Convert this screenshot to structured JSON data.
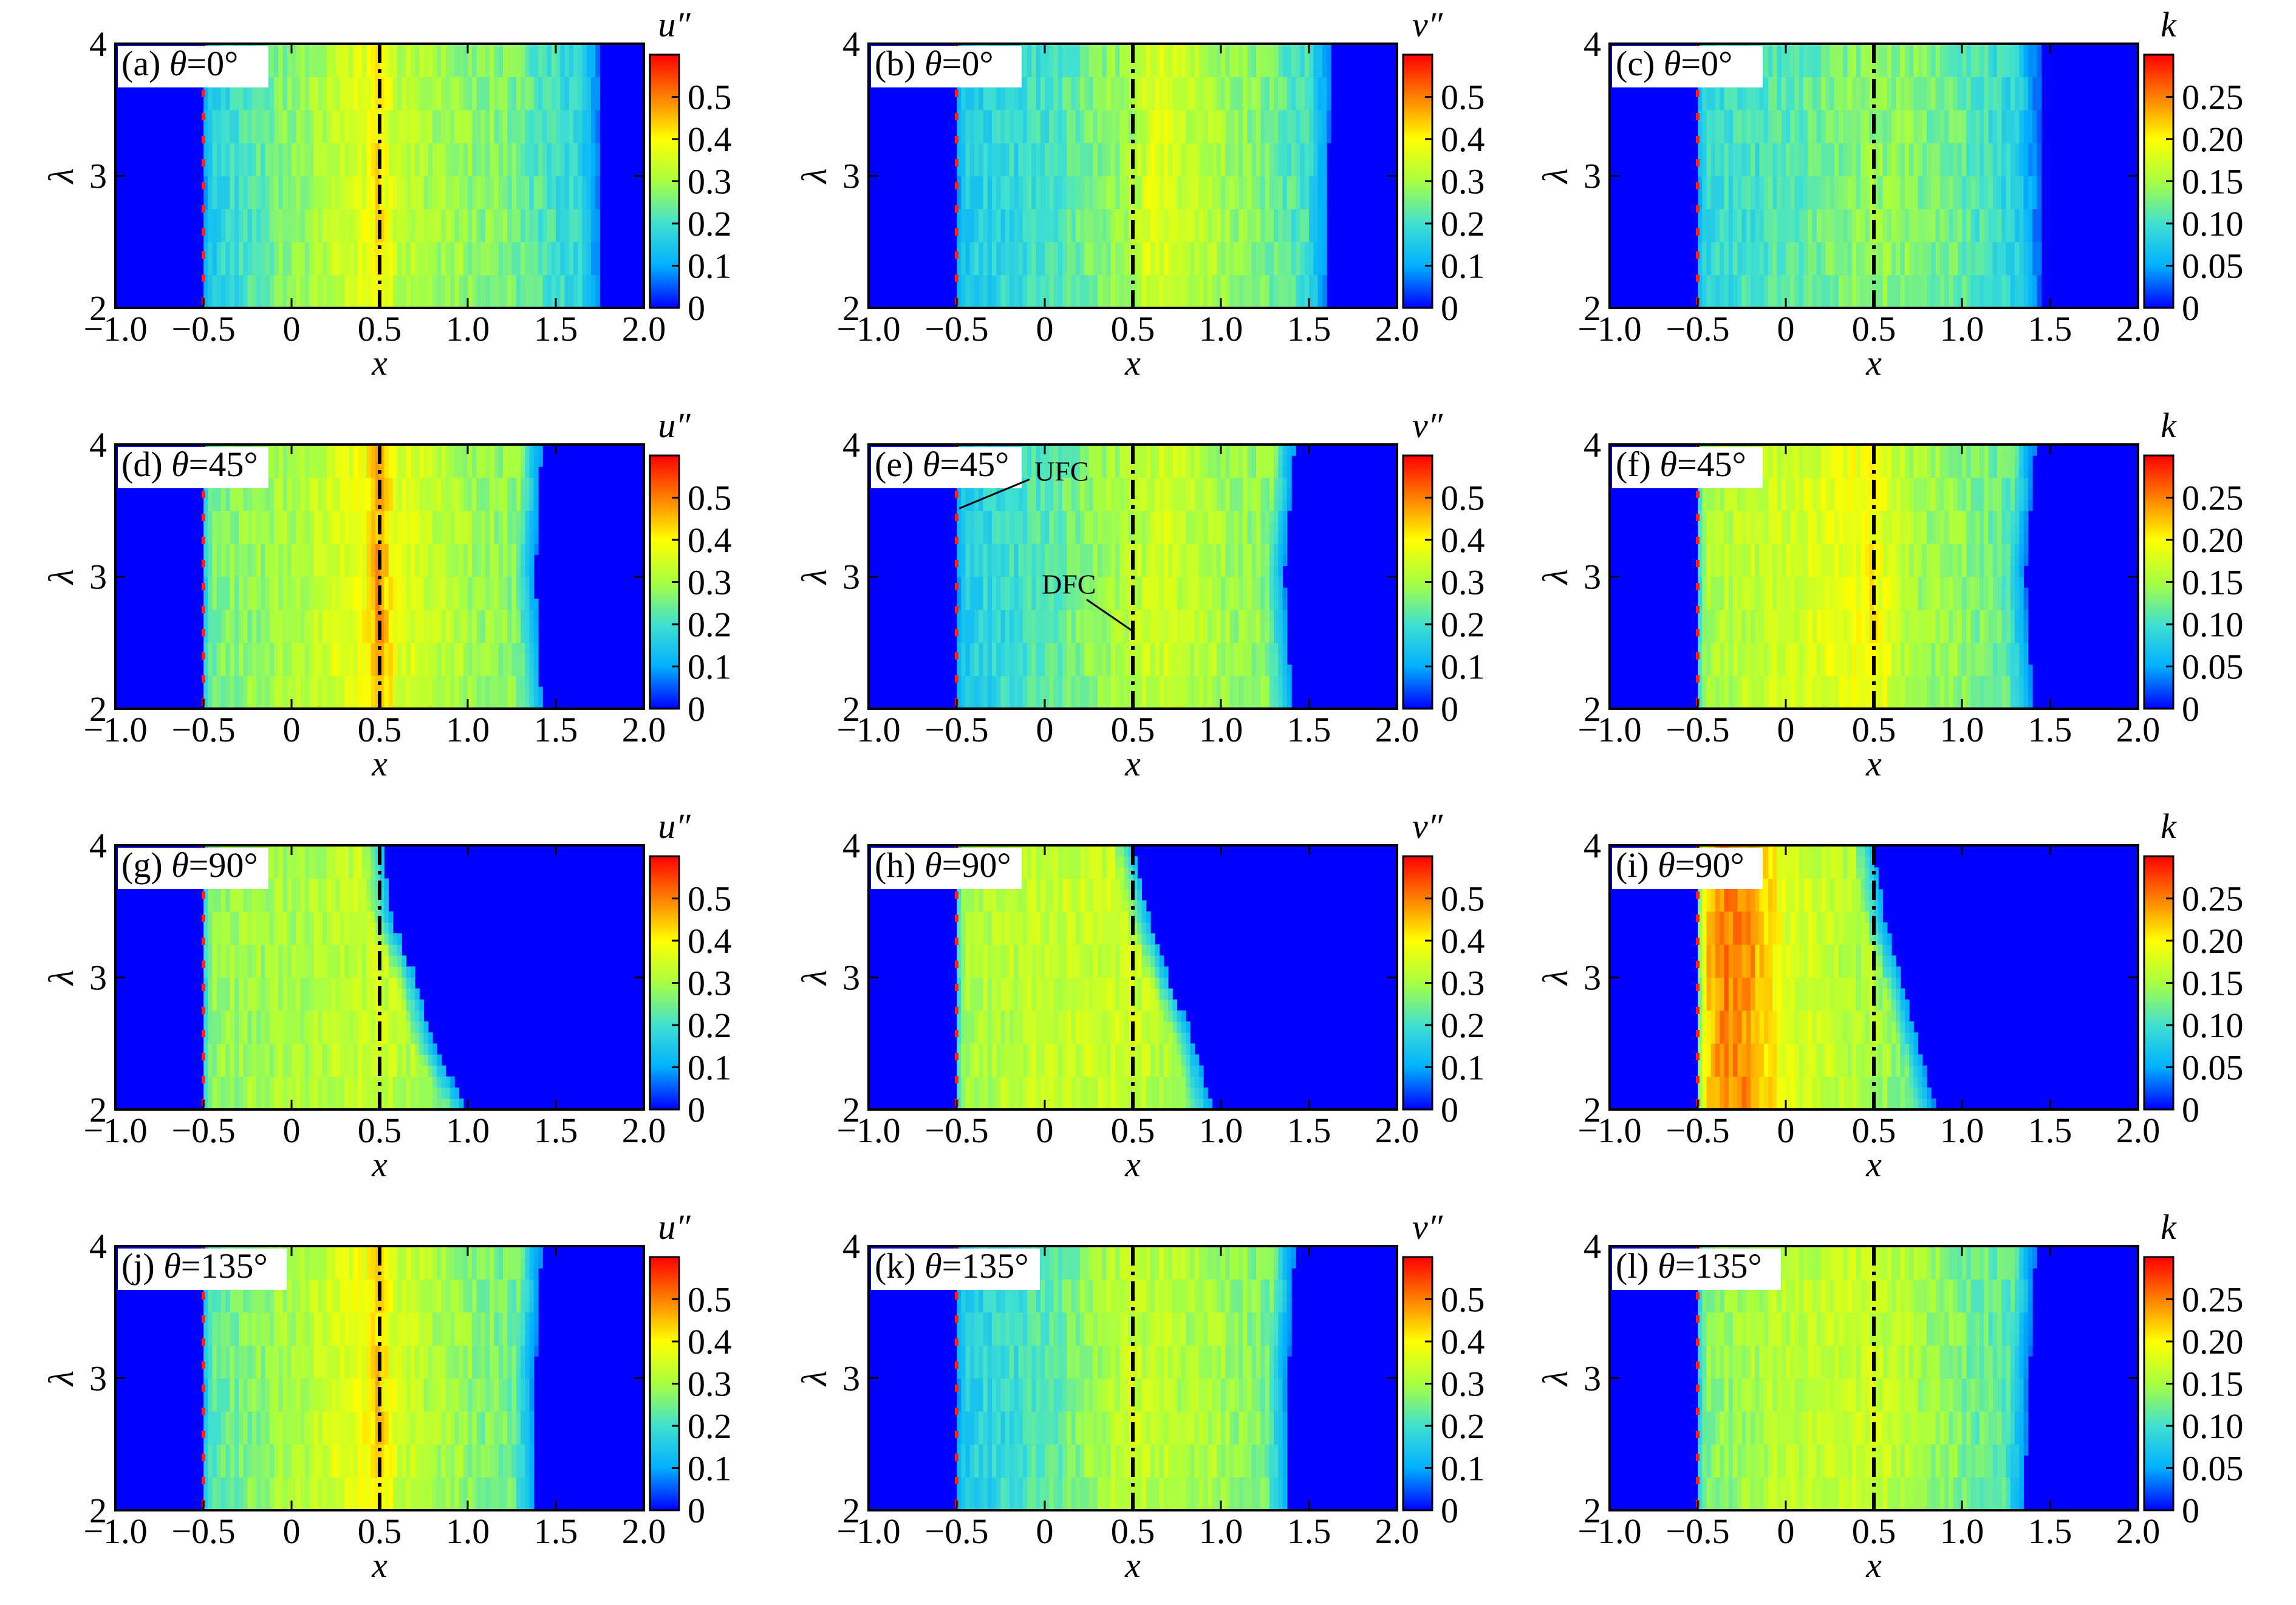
{
  "chart_data": {
    "type": "heatmap",
    "x_axis": {
      "label": "x",
      "range": [
        -1.0,
        2.0
      ],
      "ticks": [
        "−1.0",
        "−0.5",
        "0",
        "0.5",
        "1.0",
        "1.5",
        "2.0"
      ],
      "tick_values": [
        -1.0,
        -0.5,
        0,
        0.5,
        1.0,
        1.5,
        2.0
      ]
    },
    "y_axis": {
      "label": "λ",
      "range": [
        2,
        4
      ],
      "ticks": [
        "2",
        "3",
        "4"
      ],
      "tick_values": [
        2,
        3,
        4
      ]
    },
    "reference_lines": {
      "upstream_x": -0.5,
      "downstream_x": 0.5
    },
    "annotations": [
      {
        "panel": "e",
        "text": "UFC",
        "x": -0.5,
        "y": 3.35
      },
      {
        "panel": "e",
        "text": "DFC",
        "x": 0.5,
        "y": 2.55
      }
    ],
    "colorbars": {
      "u": {
        "label": "u″",
        "range": [
          0,
          0.6
        ],
        "ticks": [
          "0",
          "0.1",
          "0.2",
          "0.3",
          "0.4",
          "0.5"
        ],
        "tick_values": [
          0,
          0.1,
          0.2,
          0.3,
          0.4,
          0.5
        ]
      },
      "v": {
        "label": "v″",
        "range": [
          0,
          0.6
        ],
        "ticks": [
          "0",
          "0.1",
          "0.2",
          "0.3",
          "0.4",
          "0.5"
        ],
        "tick_values": [
          0,
          0.1,
          0.2,
          0.3,
          0.4,
          0.5
        ]
      },
      "k": {
        "label": "k",
        "range": [
          0,
          0.3
        ],
        "ticks": [
          "0",
          "0.05",
          "0.10",
          "0.15",
          "0.20",
          "0.25"
        ],
        "tick_values": [
          0,
          0.05,
          0.1,
          0.15,
          0.2,
          0.25
        ]
      }
    },
    "colormap": [
      "#0000ff",
      "#00b0ff",
      "#40e0d0",
      "#a8ff40",
      "#ffff00",
      "#ff8000",
      "#ff0000"
    ],
    "panels": [
      {
        "id": "a",
        "tag": "(a)",
        "theta": "θ=0°",
        "var": "u",
        "front": [
          [
            2,
            1.75
          ],
          [
            4,
            1.75
          ]
        ],
        "levels": [
          [
            -0.5,
            0.15
          ],
          [
            0.0,
            0.27
          ],
          [
            0.4,
            0.36
          ],
          [
            0.5,
            0.42
          ],
          [
            0.6,
            0.32
          ],
          [
            1.2,
            0.26
          ],
          [
            1.6,
            0.18
          ]
        ]
      },
      {
        "id": "b",
        "tag": "(b)",
        "theta": "θ=0°",
        "var": "v",
        "front": [
          [
            2,
            1.6
          ],
          [
            4,
            1.62
          ]
        ],
        "levels": [
          [
            -0.5,
            0.15
          ],
          [
            0.0,
            0.2
          ],
          [
            0.5,
            0.3
          ],
          [
            0.6,
            0.36
          ],
          [
            1.0,
            0.3
          ],
          [
            1.5,
            0.2
          ]
        ]
      },
      {
        "id": "c",
        "tag": "(c)",
        "theta": "θ=0°",
        "var": "k",
        "front": [
          [
            2,
            1.45
          ],
          [
            4,
            1.45
          ]
        ],
        "levels": [
          [
            -0.5,
            0.09
          ],
          [
            0.0,
            0.11
          ],
          [
            0.5,
            0.14
          ],
          [
            1.0,
            0.12
          ],
          [
            1.4,
            0.07
          ]
        ]
      },
      {
        "id": "d",
        "tag": "(d)",
        "theta": "θ=45°",
        "var": "u",
        "front": [
          [
            2,
            1.42
          ],
          [
            3,
            1.38
          ],
          [
            4,
            1.42
          ]
        ],
        "levels": [
          [
            -0.5,
            0.25
          ],
          [
            0.0,
            0.3
          ],
          [
            0.4,
            0.38
          ],
          [
            0.5,
            0.48
          ],
          [
            0.6,
            0.36
          ],
          [
            1.0,
            0.3
          ],
          [
            1.4,
            0.25
          ]
        ]
      },
      {
        "id": "e",
        "tag": "(e)",
        "theta": "θ=45°",
        "var": "v",
        "front": [
          [
            2,
            1.4
          ],
          [
            3,
            1.36
          ],
          [
            4,
            1.42
          ]
        ],
        "levels": [
          [
            -0.5,
            0.15
          ],
          [
            0.0,
            0.22
          ],
          [
            0.5,
            0.32
          ],
          [
            0.7,
            0.34
          ],
          [
            1.0,
            0.3
          ],
          [
            1.4,
            0.25
          ]
        ]
      },
      {
        "id": "f",
        "tag": "(f)",
        "theta": "θ=45°",
        "var": "k",
        "front": [
          [
            2,
            1.4
          ],
          [
            3,
            1.36
          ],
          [
            4,
            1.42
          ]
        ],
        "levels": [
          [
            -0.5,
            0.15
          ],
          [
            0.0,
            0.17
          ],
          [
            0.4,
            0.19
          ],
          [
            0.5,
            0.2
          ],
          [
            0.7,
            0.15
          ],
          [
            1.0,
            0.14
          ],
          [
            1.4,
            0.1
          ]
        ]
      },
      {
        "id": "g",
        "tag": "(g)",
        "theta": "θ=90°",
        "var": "u",
        "front": [
          [
            2,
            1.0
          ],
          [
            2.5,
            0.8
          ],
          [
            3.0,
            0.7
          ],
          [
            3.5,
            0.55
          ],
          [
            4,
            0.52
          ]
        ],
        "levels": [
          [
            -0.5,
            0.28
          ],
          [
            0.0,
            0.3
          ],
          [
            0.5,
            0.34
          ],
          [
            1.0,
            0.25
          ]
        ]
      },
      {
        "id": "h",
        "tag": "(h)",
        "theta": "θ=90°",
        "var": "v",
        "front": [
          [
            2,
            0.95
          ],
          [
            2.5,
            0.85
          ],
          [
            3.0,
            0.7
          ],
          [
            3.5,
            0.58
          ],
          [
            4,
            0.5
          ]
        ],
        "levels": [
          [
            -0.5,
            0.3
          ],
          [
            0.0,
            0.33
          ],
          [
            0.5,
            0.34
          ],
          [
            1.0,
            0.25
          ]
        ]
      },
      {
        "id": "i",
        "tag": "(i)",
        "theta": "θ=90°",
        "var": "k",
        "front": [
          [
            2,
            0.85
          ],
          [
            2.5,
            0.75
          ],
          [
            3.0,
            0.65
          ],
          [
            3.5,
            0.55
          ],
          [
            4,
            0.5
          ]
        ],
        "levels": [
          [
            -0.5,
            0.2
          ],
          [
            -0.35,
            0.25
          ],
          [
            -0.2,
            0.24
          ],
          [
            0.0,
            0.18
          ],
          [
            0.5,
            0.15
          ],
          [
            0.8,
            0.12
          ]
        ]
      },
      {
        "id": "j",
        "tag": "(j)",
        "theta": "θ=135°",
        "var": "u",
        "front": [
          [
            2,
            1.38
          ],
          [
            3,
            1.38
          ],
          [
            4,
            1.42
          ]
        ],
        "levels": [
          [
            -0.5,
            0.22
          ],
          [
            0.0,
            0.3
          ],
          [
            0.4,
            0.38
          ],
          [
            0.5,
            0.44
          ],
          [
            0.6,
            0.34
          ],
          [
            1.0,
            0.28
          ],
          [
            1.4,
            0.22
          ]
        ]
      },
      {
        "id": "k",
        "tag": "(k)",
        "theta": "θ=135°",
        "var": "v",
        "front": [
          [
            2,
            1.38
          ],
          [
            3,
            1.38
          ],
          [
            4,
            1.42
          ]
        ],
        "levels": [
          [
            -0.5,
            0.15
          ],
          [
            0.0,
            0.22
          ],
          [
            0.5,
            0.34
          ],
          [
            0.6,
            0.32
          ],
          [
            1.0,
            0.3
          ],
          [
            1.4,
            0.22
          ]
        ]
      },
      {
        "id": "l",
        "tag": "(l)",
        "theta": "θ=135°",
        "var": "k",
        "front": [
          [
            2,
            1.35
          ],
          [
            3,
            1.38
          ],
          [
            4,
            1.42
          ]
        ],
        "levels": [
          [
            -0.5,
            0.13
          ],
          [
            0.0,
            0.16
          ],
          [
            0.5,
            0.17
          ],
          [
            1.0,
            0.13
          ],
          [
            1.4,
            0.1
          ]
        ]
      }
    ]
  }
}
